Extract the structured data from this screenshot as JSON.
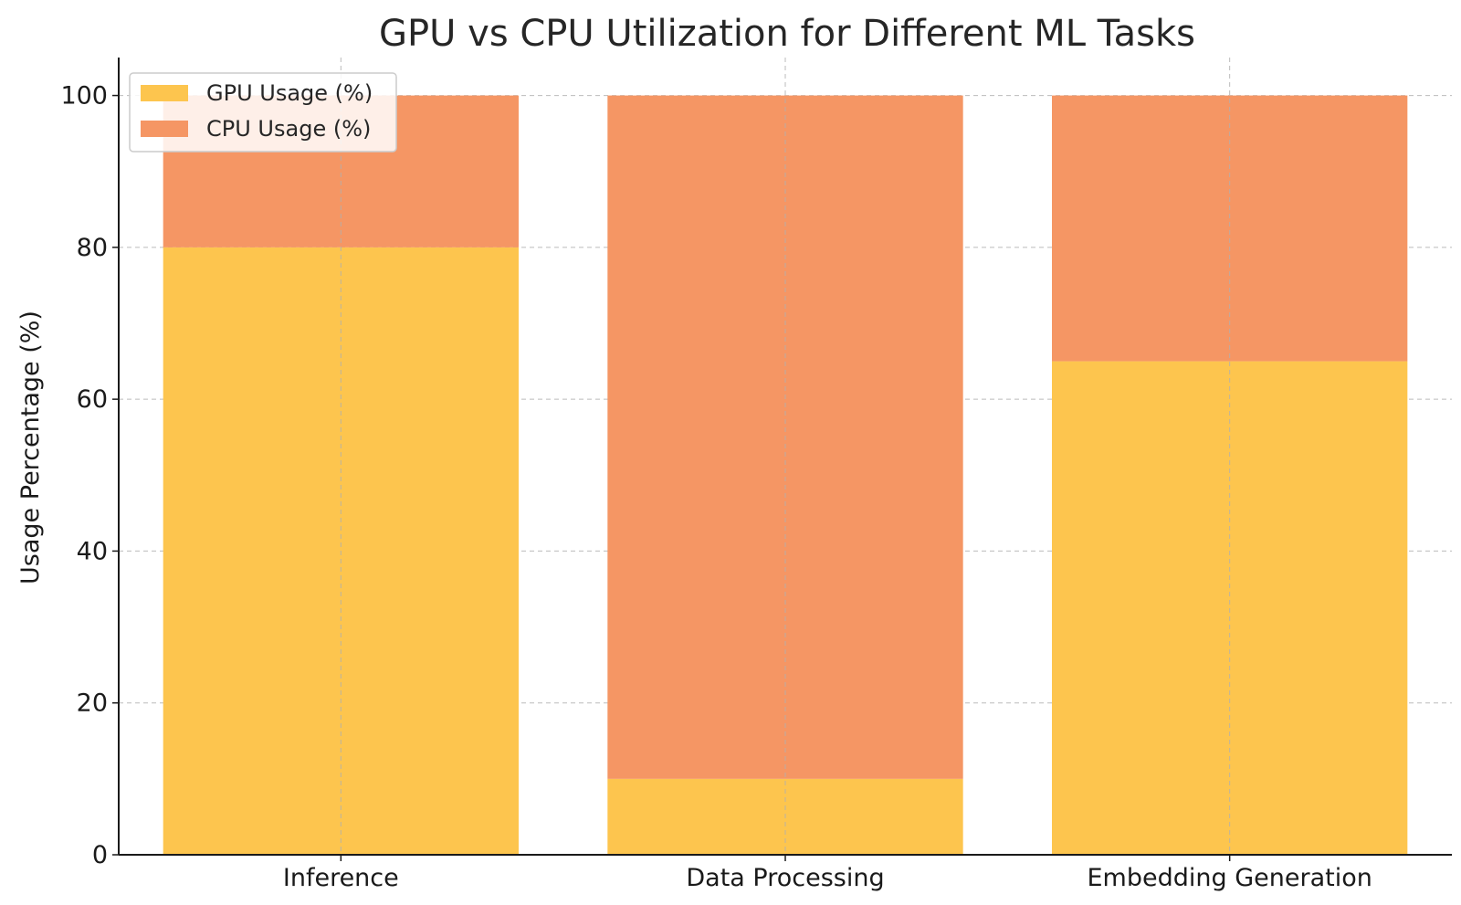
{
  "chart_data": {
    "type": "bar",
    "stacked": true,
    "title": "GPU vs CPU Utilization for Different ML Tasks",
    "xlabel": "",
    "ylabel": "Usage Percentage (%)",
    "categories": [
      "Inference",
      "Data Processing",
      "Embedding Generation"
    ],
    "series": [
      {
        "name": "GPU Usage (%)",
        "values": [
          80,
          10,
          65
        ],
        "color": "#FDC54E"
      },
      {
        "name": "CPU Usage (%)",
        "values": [
          20,
          90,
          35
        ],
        "color": "#F59664"
      }
    ],
    "ylim": [
      0,
      105
    ],
    "yticks": [
      0,
      20,
      40,
      60,
      80,
      100
    ],
    "grid": true,
    "legend_position": "top-left"
  }
}
